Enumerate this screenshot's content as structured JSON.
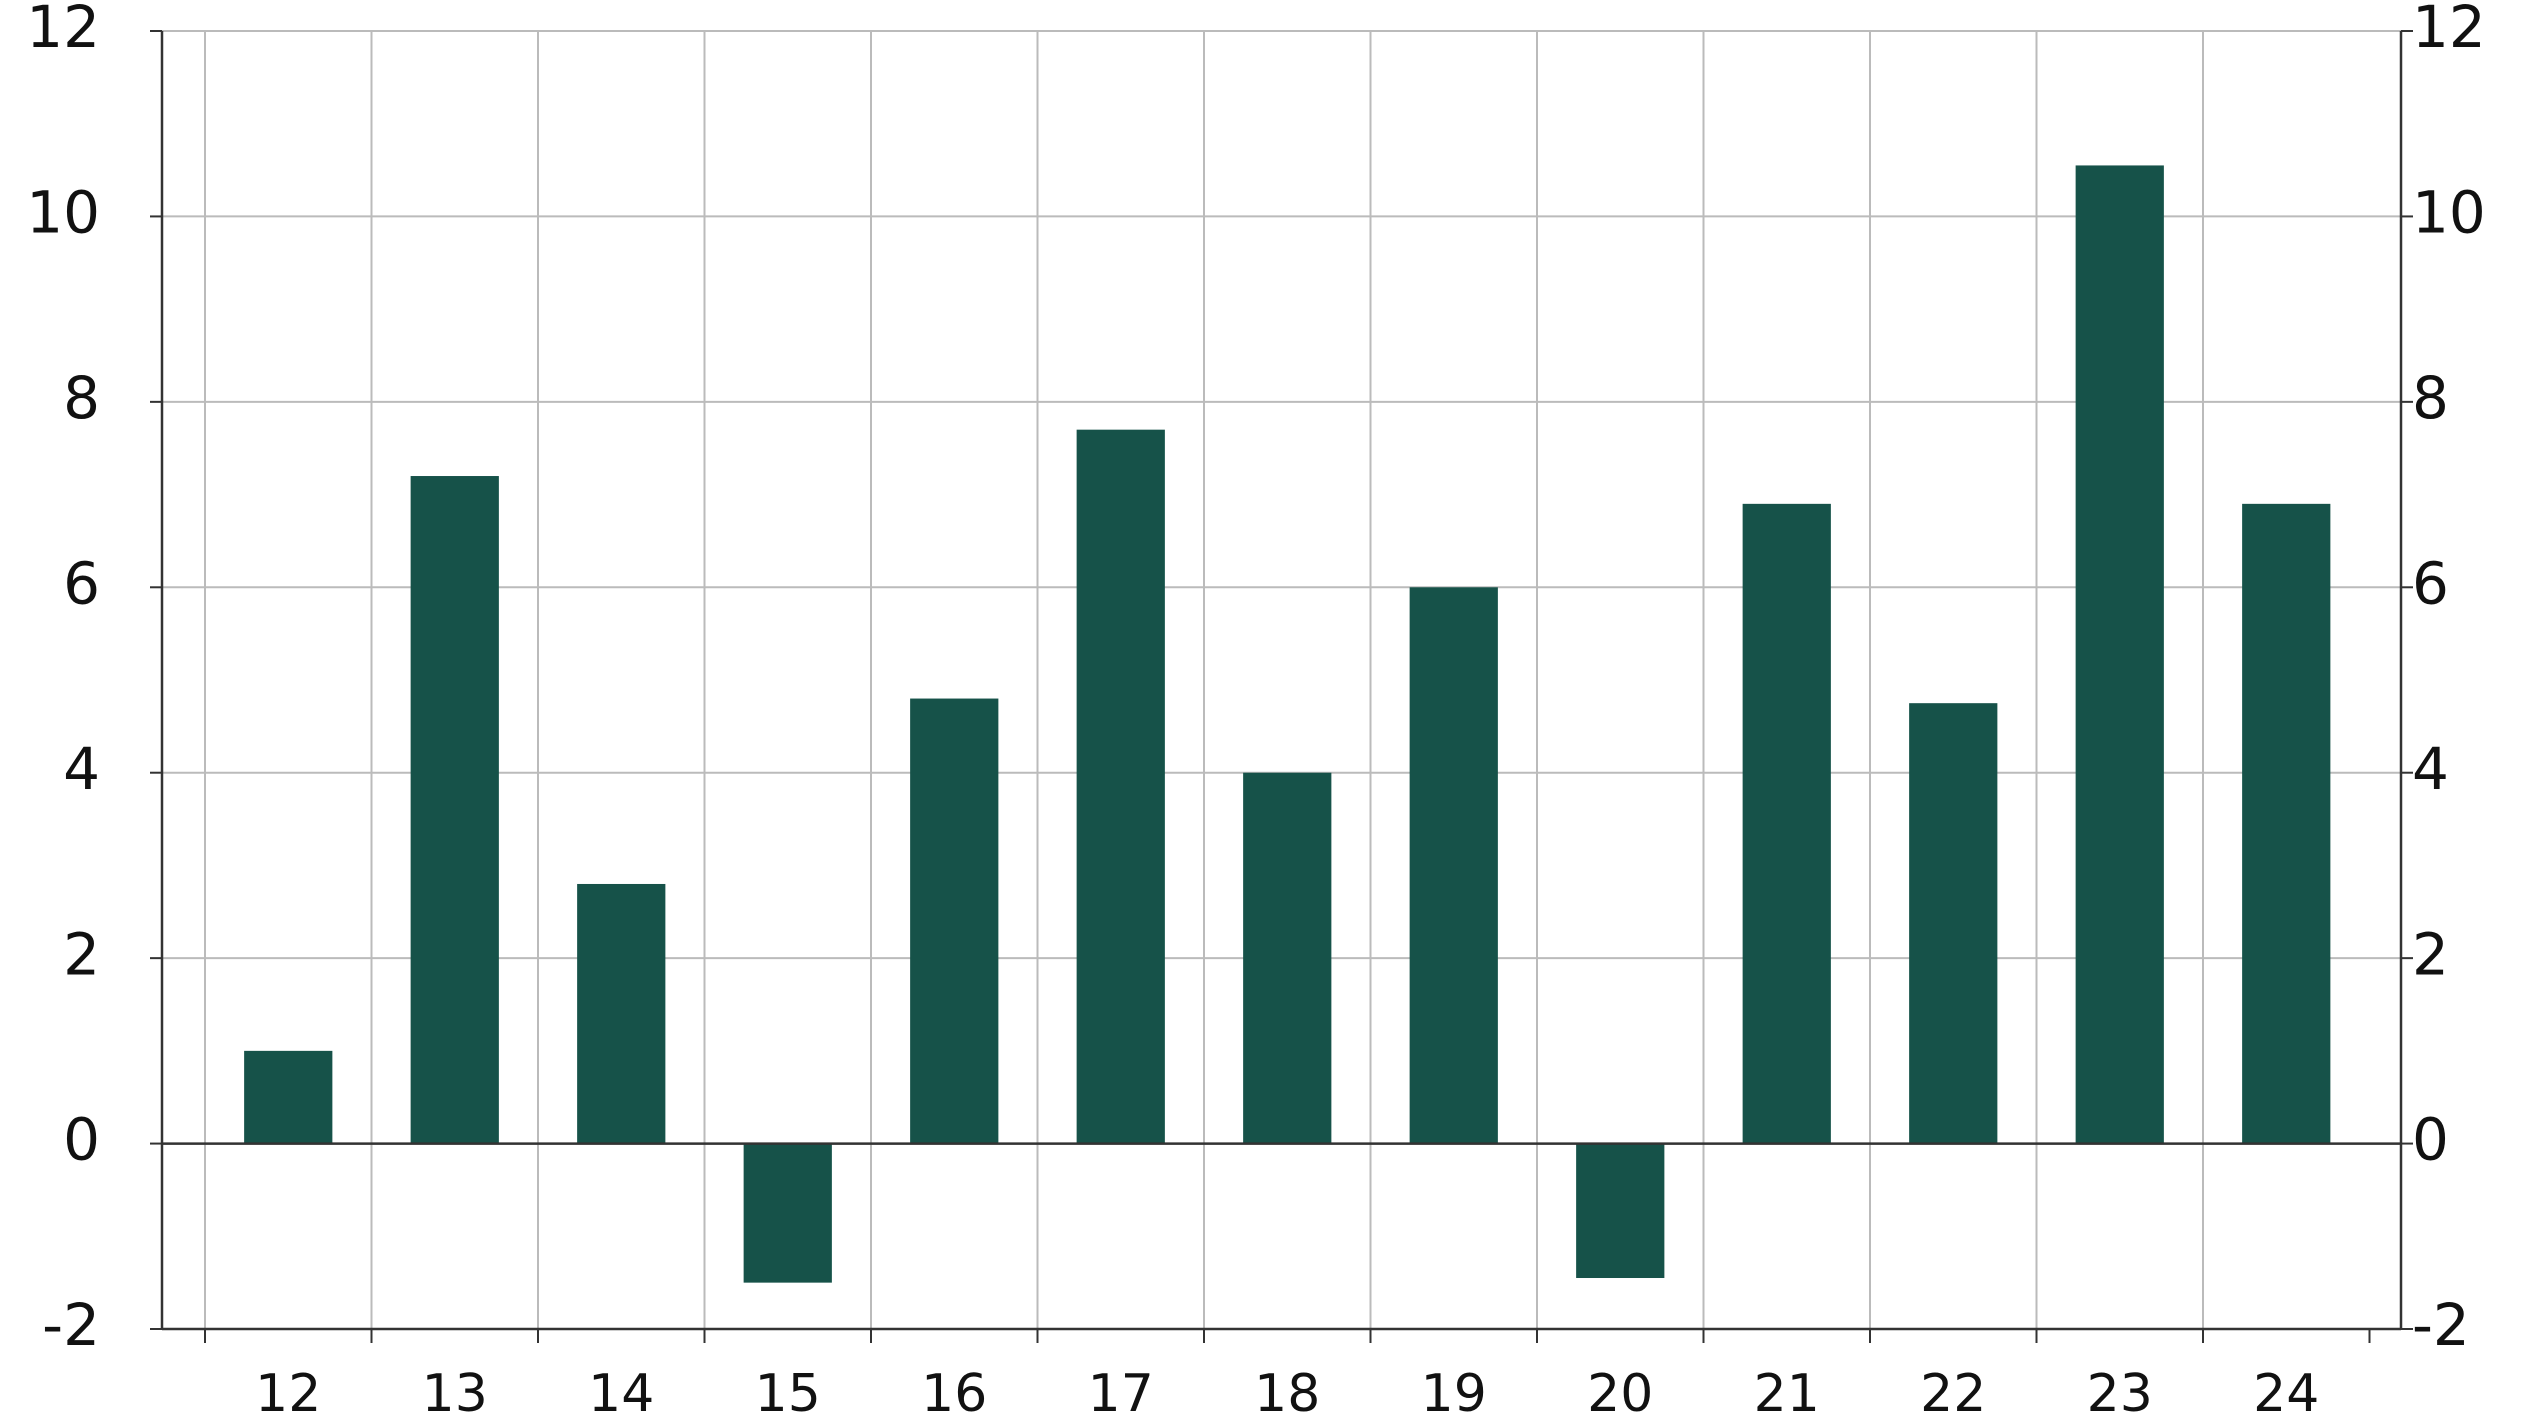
{
  "chart_data": {
    "type": "bar",
    "categories": [
      "12",
      "13",
      "14",
      "15",
      "16",
      "17",
      "18",
      "19",
      "20",
      "21",
      "22",
      "23",
      "24"
    ],
    "values": [
      1.0,
      7.2,
      2.8,
      -1.5,
      4.8,
      7.7,
      4.0,
      6.0,
      -1.45,
      6.9,
      4.75,
      10.55,
      6.9
    ],
    "color": "#165249",
    "ylim": [
      -2,
      12
    ],
    "yticks": [
      -2,
      0,
      2,
      4,
      6,
      8,
      10,
      12
    ],
    "grid": true
  }
}
